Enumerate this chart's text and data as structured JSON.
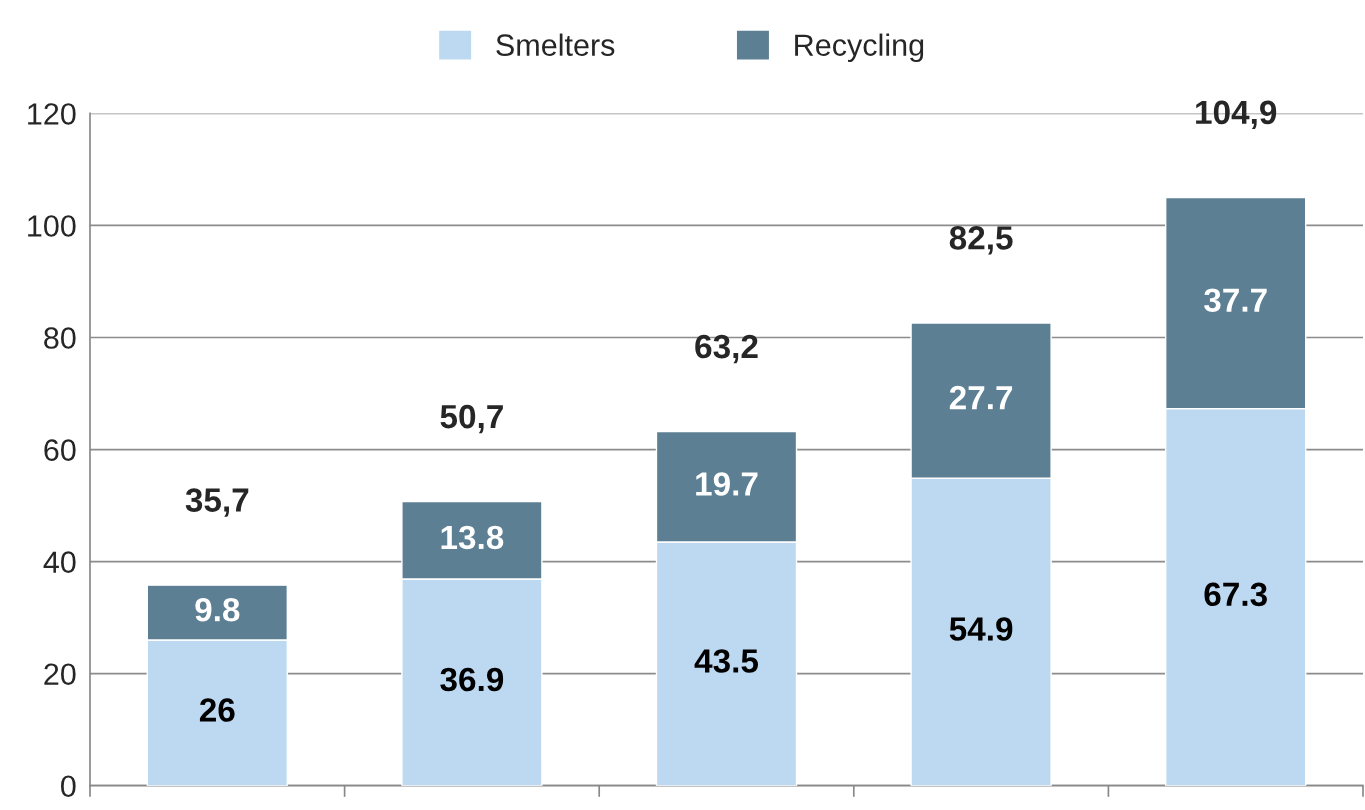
{
  "chart_data": {
    "type": "bar",
    "stacked": true,
    "categories": [
      null,
      null,
      null,
      null,
      null
    ],
    "series": [
      {
        "name": "Smelters",
        "color": "#bdd9f1",
        "values": [
          26,
          36.9,
          43.5,
          54.9,
          67.3
        ]
      },
      {
        "name": "Recycling",
        "color": "#5c7f93",
        "values": [
          9.8,
          13.8,
          19.7,
          27.7,
          37.7
        ]
      }
    ],
    "totals": [
      "35,7",
      "50,7",
      "63,2",
      "82,5",
      "104,9"
    ],
    "ylim": [
      0,
      120
    ],
    "yticks": [
      0,
      20,
      40,
      60,
      80,
      100,
      120
    ],
    "grid": "y",
    "legend": "top",
    "data_labels": true,
    "tick_labels": "y"
  }
}
